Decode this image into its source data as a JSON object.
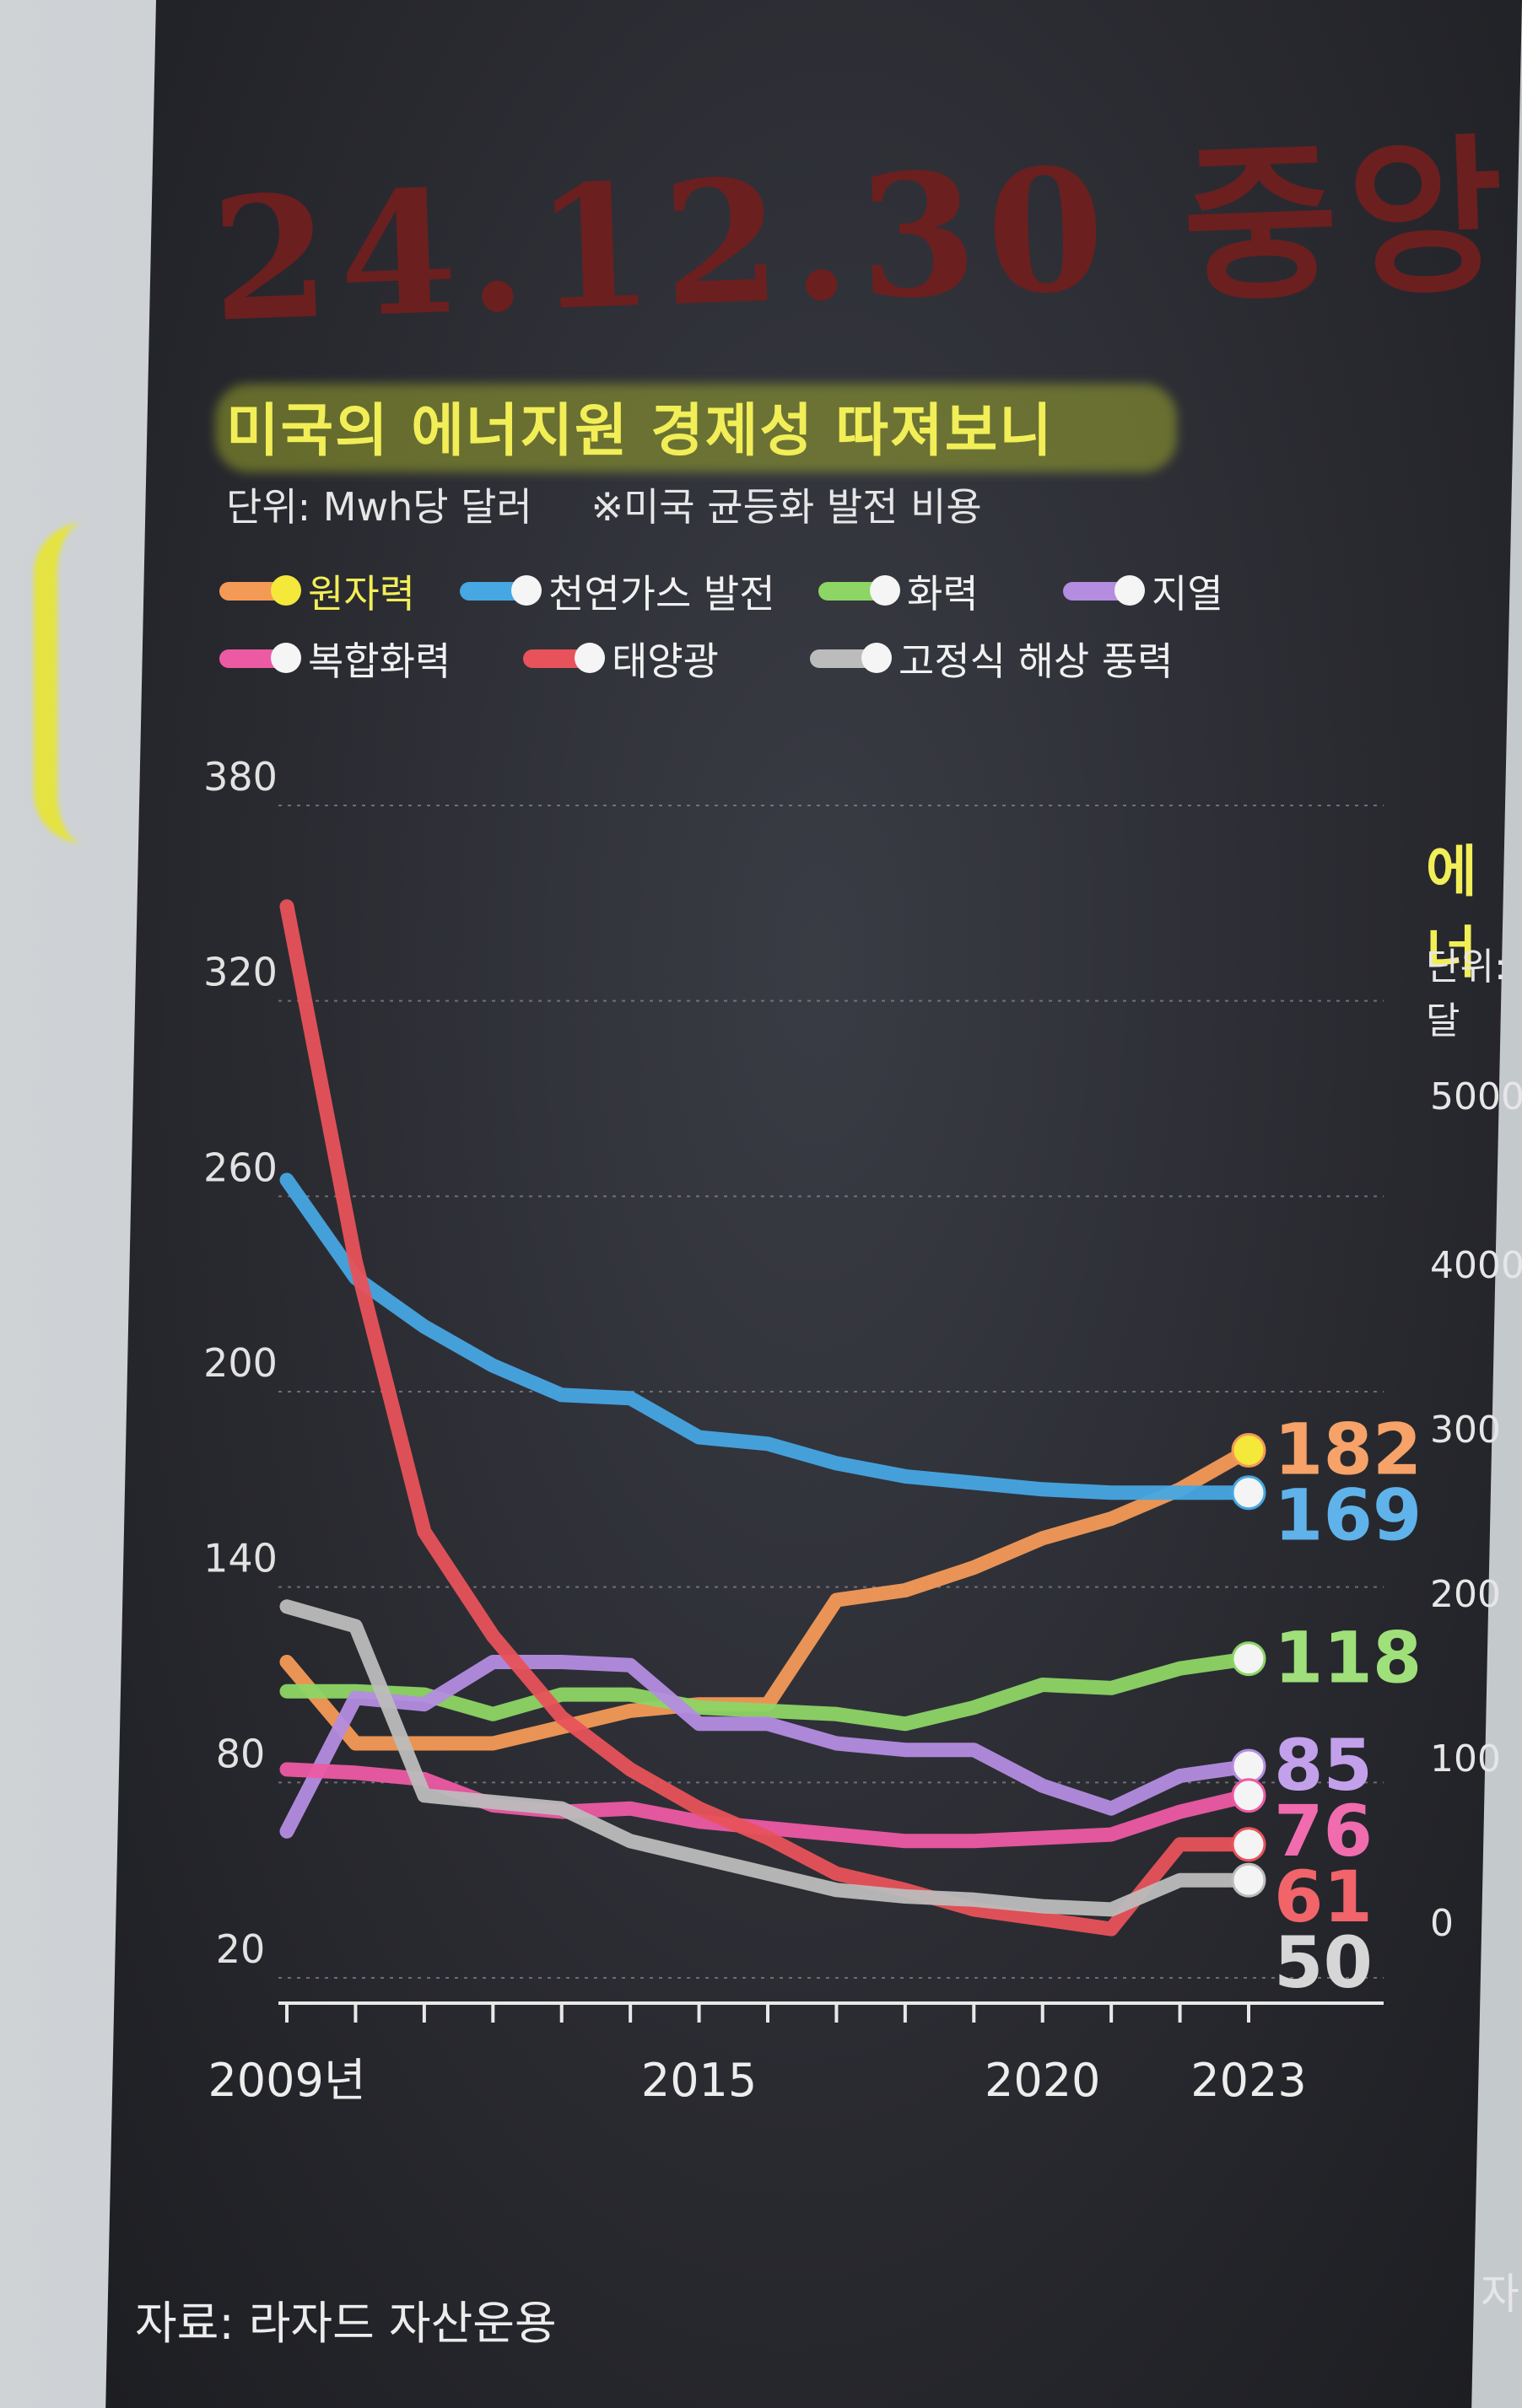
{
  "handwritten_note": "24.12.30 중앙",
  "chart_data": {
    "type": "line",
    "title": "미국의 에너지원 경제성 따져보니",
    "unit_label": "단위: Mwh당 달러",
    "note": "※미국 균등화 발전 비용",
    "source": "자료: 라자드 자산운용",
    "ylim": [
      20,
      380
    ],
    "yticks": [
      20,
      80,
      140,
      200,
      260,
      320,
      380
    ],
    "xlim": [
      2009,
      2023
    ],
    "xticks": [
      2009,
      2010,
      2011,
      2012,
      2013,
      2014,
      2015,
      2016,
      2017,
      2018,
      2019,
      2020,
      2021,
      2022,
      2023
    ],
    "xtick_labels": [
      {
        "x": 2009,
        "label": "2009년"
      },
      {
        "x": 2015,
        "label": "2015"
      },
      {
        "x": 2020,
        "label": "2020"
      },
      {
        "x": 2023,
        "label": "2023"
      }
    ],
    "grid": true,
    "legend_position": "top",
    "x": [
      2009,
      2010,
      2011,
      2012,
      2013,
      2014,
      2015,
      2016,
      2017,
      2018,
      2019,
      2020,
      2021,
      2022,
      2023
    ],
    "series": [
      {
        "name": "원자력",
        "color": "#f39a57",
        "end_label": "182",
        "end_label_color": "#f6a268",
        "values": [
          117,
          92,
          92,
          92,
          97,
          102,
          104,
          104,
          136,
          139,
          146,
          155,
          161,
          170,
          182
        ]
      },
      {
        "name": "천연가스 발전",
        "color": "#47a7e3",
        "end_label": "169",
        "end_label_color": "#5fb3ea",
        "values": [
          265,
          235,
          220,
          208,
          199,
          198,
          186,
          184,
          178,
          174,
          172,
          170,
          169,
          169,
          169
        ]
      },
      {
        "name": "화력",
        "color": "#8dd565",
        "end_label": "118",
        "end_label_color": "#9fe07a",
        "values": [
          108,
          108,
          107,
          101,
          107,
          107,
          103,
          102,
          101,
          98,
          103,
          110,
          109,
          115,
          118
        ]
      },
      {
        "name": "지열",
        "color": "#b48ce0",
        "end_label": "85",
        "end_label_color": "#c3a0ea",
        "values": [
          65,
          106,
          104,
          117,
          117,
          116,
          98,
          98,
          92,
          90,
          90,
          79,
          72,
          82,
          85
        ]
      },
      {
        "name": "복합화력",
        "color": "#ec5aa3",
        "end_label": "76",
        "end_label_color": "#f06cae",
        "values": [
          84,
          83,
          81,
          73,
          71,
          72,
          68,
          66,
          64,
          62,
          62,
          63,
          64,
          71,
          76
        ]
      },
      {
        "name": "태양광",
        "color": "#e8525a",
        "end_label": "61",
        "end_label_color": "#f0646a",
        "values": [
          349,
          240,
          157,
          125,
          100,
          84,
          72,
          63,
          52,
          47,
          41,
          38,
          35,
          61,
          61
        ]
      },
      {
        "name": "고정식 해상 풍력",
        "color": "#bcbcbc",
        "end_label": "50",
        "end_label_color": "#d6d6d6",
        "values": [
          134,
          128,
          76,
          74,
          72,
          62,
          57,
          52,
          47,
          45,
          44,
          42,
          41,
          50,
          50
        ]
      }
    ]
  },
  "right_chart_partial": {
    "title": "에너",
    "unit": "단위: 달",
    "ticks": [
      "5000",
      "4000",
      "300",
      "200",
      "100",
      "0"
    ],
    "footer": "자"
  }
}
